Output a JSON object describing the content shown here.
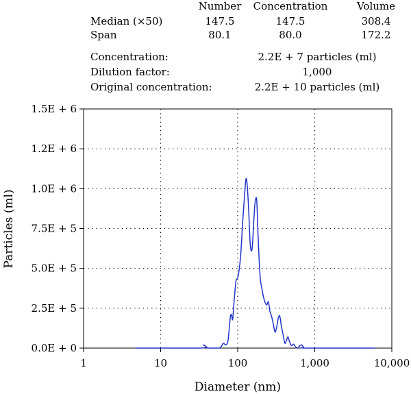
{
  "stats_table": {
    "headers": [
      "Number",
      "Concentration",
      "Volume"
    ],
    "rows": [
      {
        "label": "Median (×50)",
        "values": [
          "147.5",
          "147.5",
          "308.4"
        ]
      },
      {
        "label": "Span",
        "values": [
          "80.1",
          "80.0",
          "172.2"
        ]
      }
    ]
  },
  "info": [
    {
      "label": "Concentration:",
      "value": "2.2E + 7 particles (ml)"
    },
    {
      "label": "Dilution factor:",
      "value": "1,000"
    },
    {
      "label": "Original concentration:",
      "value": "2.2E + 10 particles (ml)"
    }
  ],
  "chart_data": {
    "type": "line",
    "title": "",
    "xlabel": "Diameter (nm)",
    "ylabel": "Particles (ml)",
    "x_scale": "log",
    "xlim": [
      1,
      10000
    ],
    "ylim": [
      0,
      1500000
    ],
    "x_ticks": [
      {
        "value": 1,
        "label": "1"
      },
      {
        "value": 10,
        "label": "10"
      },
      {
        "value": 100,
        "label": "100"
      },
      {
        "value": 1000,
        "label": "1,000"
      },
      {
        "value": 10000,
        "label": "10,000"
      }
    ],
    "y_ticks": [
      {
        "value": 0,
        "label": "0.0E + 0"
      },
      {
        "value": 250000,
        "label": "2.5E + 5"
      },
      {
        "value": 500000,
        "label": "5.0E + 5"
      },
      {
        "value": 750000,
        "label": "7.5E + 5"
      },
      {
        "value": 1000000,
        "label": "1.0E + 6"
      },
      {
        "value": 1250000,
        "label": "1.2E + 6"
      },
      {
        "value": 1500000,
        "label": "1.5E + 6"
      }
    ],
    "grid": "dotted",
    "line_color": "#2233cc",
    "series": [
      {
        "points": [
          [
            4.7,
            0
          ],
          [
            33,
            0
          ],
          [
            36,
            20000
          ],
          [
            39,
            8000
          ],
          [
            42,
            0
          ],
          [
            58,
            0
          ],
          [
            65,
            30000
          ],
          [
            70,
            20000
          ],
          [
            75,
            50000
          ],
          [
            80,
            190000
          ],
          [
            83,
            210000
          ],
          [
            86,
            180000
          ],
          [
            90,
            300000
          ],
          [
            95,
            420000
          ],
          [
            100,
            440000
          ],
          [
            105,
            500000
          ],
          [
            110,
            600000
          ],
          [
            116,
            790000
          ],
          [
            122,
            940000
          ],
          [
            128,
            1060000
          ],
          [
            133,
            1020000
          ],
          [
            139,
            860000
          ],
          [
            145,
            660000
          ],
          [
            150,
            610000
          ],
          [
            155,
            640000
          ],
          [
            161,
            780000
          ],
          [
            167,
            900000
          ],
          [
            172,
            940000
          ],
          [
            177,
            920000
          ],
          [
            183,
            730000
          ],
          [
            190,
            550000
          ],
          [
            197,
            430000
          ],
          [
            205,
            380000
          ],
          [
            214,
            330000
          ],
          [
            225,
            290000
          ],
          [
            238,
            270000
          ],
          [
            250,
            290000
          ],
          [
            262,
            230000
          ],
          [
            275,
            200000
          ],
          [
            290,
            150000
          ],
          [
            305,
            100000
          ],
          [
            320,
            130000
          ],
          [
            337,
            190000
          ],
          [
            352,
            200000
          ],
          [
            368,
            140000
          ],
          [
            390,
            80000
          ],
          [
            410,
            30000
          ],
          [
            430,
            50000
          ],
          [
            450,
            70000
          ],
          [
            470,
            40000
          ],
          [
            500,
            15000
          ],
          [
            530,
            25000
          ],
          [
            560,
            10000
          ],
          [
            600,
            0
          ],
          [
            640,
            15000
          ],
          [
            680,
            20000
          ],
          [
            720,
            5000
          ],
          [
            800,
            0
          ],
          [
            6000,
            0
          ]
        ]
      }
    ]
  }
}
